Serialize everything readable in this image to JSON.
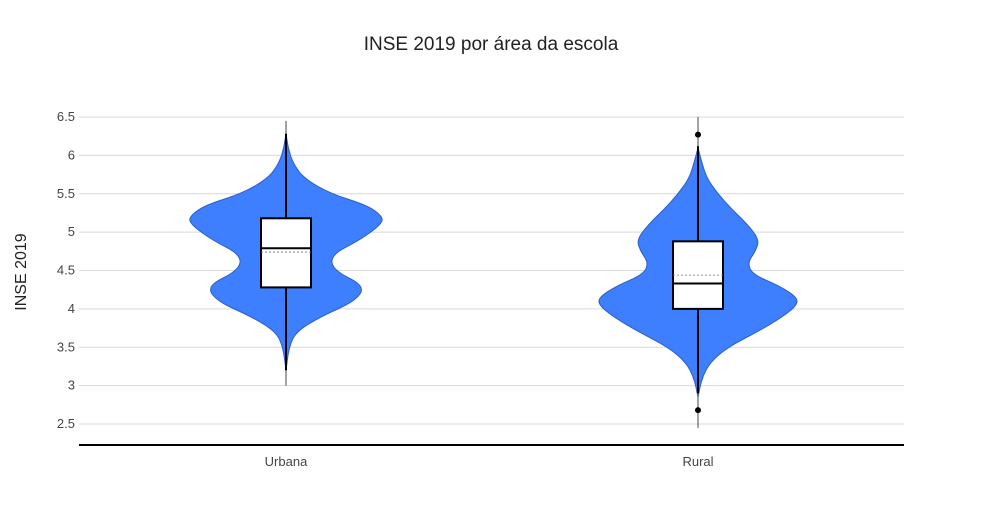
{
  "chart_data": {
    "type": "violin",
    "title": "INSE 2019 por área da escola",
    "xlabel": "",
    "ylabel": "INSE 2019",
    "ylim": [
      2.25,
      6.5
    ],
    "yticks": [
      2.5,
      3,
      3.5,
      4,
      4.5,
      5,
      5.5,
      6,
      6.5
    ],
    "ytick_labels": [
      "2.5",
      "3",
      "3.5",
      "4",
      "4.5",
      "5",
      "5.5",
      "6",
      "6.5"
    ],
    "grid": true,
    "legend": "none",
    "fill_color": "#3d7fff",
    "categories": [
      "Urbana",
      "Rural"
    ],
    "series": [
      {
        "category": "Urbana",
        "min": 3.0,
        "max": 6.45,
        "whisker_low": 3.2,
        "whisker_high": 6.28,
        "q1": 4.28,
        "median": 4.79,
        "q3": 5.18,
        "mean": 4.74,
        "outliers": [],
        "density": [
          [
            3.2,
            0.0
          ],
          [
            3.5,
            0.03
          ],
          [
            3.7,
            0.1
          ],
          [
            3.9,
            0.35
          ],
          [
            4.1,
            0.7
          ],
          [
            4.3,
            0.8
          ],
          [
            4.5,
            0.48
          ],
          [
            4.7,
            0.45
          ],
          [
            4.9,
            0.75
          ],
          [
            5.1,
            0.96
          ],
          [
            5.2,
            0.98
          ],
          [
            5.35,
            0.82
          ],
          [
            5.5,
            0.45
          ],
          [
            5.7,
            0.18
          ],
          [
            5.9,
            0.07
          ],
          [
            6.1,
            0.02
          ],
          [
            6.3,
            0.0
          ]
        ]
      },
      {
        "category": "Rural",
        "min": 2.45,
        "max": 6.5,
        "whisker_low": 2.9,
        "whisker_high": 6.12,
        "q1": 4.0,
        "median": 4.33,
        "q3": 4.88,
        "mean": 4.44,
        "outliers": [
          2.68,
          6.27
        ],
        "density": [
          [
            2.85,
            0.0
          ],
          [
            3.1,
            0.04
          ],
          [
            3.3,
            0.12
          ],
          [
            3.5,
            0.3
          ],
          [
            3.7,
            0.6
          ],
          [
            3.9,
            0.86
          ],
          [
            4.05,
            1.0
          ],
          [
            4.15,
            1.0
          ],
          [
            4.3,
            0.82
          ],
          [
            4.45,
            0.55
          ],
          [
            4.6,
            0.5
          ],
          [
            4.75,
            0.58
          ],
          [
            4.9,
            0.62
          ],
          [
            5.1,
            0.5
          ],
          [
            5.3,
            0.34
          ],
          [
            5.5,
            0.2
          ],
          [
            5.7,
            0.09
          ],
          [
            5.9,
            0.04
          ],
          [
            6.1,
            0.0
          ]
        ]
      }
    ]
  }
}
